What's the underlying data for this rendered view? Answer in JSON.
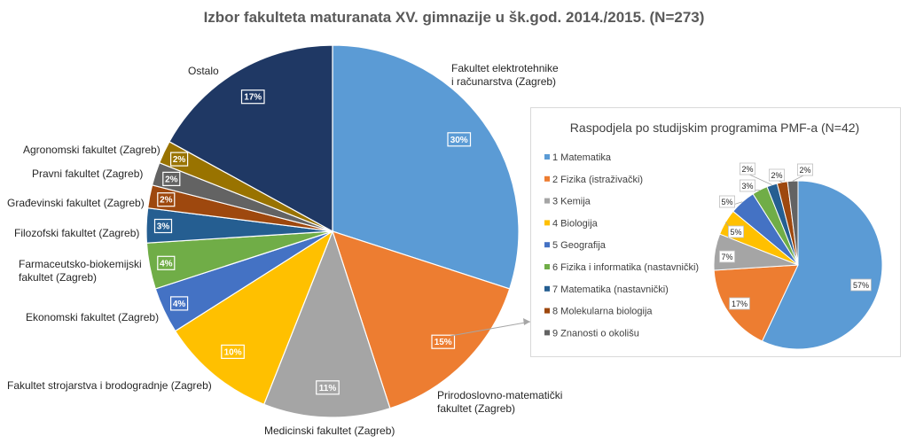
{
  "chart_data": [
    {
      "type": "pie",
      "title": "Izbor fakulteta maturanata XV. gimnazije u šk.god. 2014./2015. (N=273)",
      "slices": [
        {
          "label": "Fakultet elektrotehnike i računarstva (Zagreb)",
          "label_lines": [
            "Fakultet elektrotehnike",
            "i računarstva (Zagreb)"
          ],
          "value": 30,
          "value_label": "30%",
          "color": "#5B9BD5"
        },
        {
          "label": "Prirodoslovno-matematički fakultet (Zagreb)",
          "label_lines": [
            "Prirodoslovno-matematički",
            "fakultet (Zagreb)"
          ],
          "value": 15,
          "value_label": "15%",
          "color": "#ED7D31"
        },
        {
          "label": "Medicinski fakultet (Zagreb)",
          "label_lines": [
            "Medicinski fakultet (Zagreb)"
          ],
          "value": 11,
          "value_label": "11%",
          "color": "#A5A5A5"
        },
        {
          "label": "Fakultet strojarstva i brodogradnje (Zagreb)",
          "label_lines": [
            "Fakultet strojarstva i brodogradnje (Zagreb)"
          ],
          "value": 10,
          "value_label": "10%",
          "color": "#FFC000"
        },
        {
          "label": "Ekonomski fakultet (Zagreb)",
          "label_lines": [
            "Ekonomski fakultet (Zagreb)"
          ],
          "value": 4,
          "value_label": "4%",
          "color": "#4472C4"
        },
        {
          "label": "Farmaceutsko-biokemijski fakultet (Zagreb)",
          "label_lines": [
            "Farmaceutsko-biokemijski",
            "fakultet (Zagreb)"
          ],
          "value": 4,
          "value_label": "4%",
          "color": "#70AD47"
        },
        {
          "label": "Filozofski fakultet (Zagreb)",
          "label_lines": [
            "Filozofski fakultet (Zagreb)"
          ],
          "value": 3,
          "value_label": "3%",
          "color": "#255E91"
        },
        {
          "label": "Građevinski fakultet (Zagreb)",
          "label_lines": [
            "Građevinski fakultet (Zagreb)"
          ],
          "value": 2,
          "value_label": "2%",
          "color": "#9E480E"
        },
        {
          "label": "Pravni fakultet (Zagreb)",
          "label_lines": [
            "Pravni fakultet (Zagreb)"
          ],
          "value": 2,
          "value_label": "2%",
          "color": "#636363"
        },
        {
          "label": "Agronomski fakultet (Zagreb)",
          "label_lines": [
            "Agronomski fakultet (Zagreb)"
          ],
          "value": 2,
          "value_label": "2%",
          "color": "#997300"
        },
        {
          "label": "Ostalo",
          "label_lines": [
            "Ostalo"
          ],
          "value": 17,
          "value_label": "17%",
          "color": "#1F3864"
        }
      ]
    },
    {
      "type": "pie",
      "title": "Raspodjela po studijskim programima PMF-a (N=42)",
      "legend": "left",
      "slices": [
        {
          "num": "1",
          "label": "Matematika",
          "value": 57,
          "value_label": "57%",
          "color": "#5B9BD5"
        },
        {
          "num": "2",
          "label": "Fizika (istraživački)",
          "value": 17,
          "value_label": "17%",
          "color": "#ED7D31"
        },
        {
          "num": "3",
          "label": "Kemija",
          "value": 7,
          "value_label": "7%",
          "color": "#A5A5A5"
        },
        {
          "num": "4",
          "label": "Biologija",
          "value": 5,
          "value_label": "5%",
          "color": "#FFC000"
        },
        {
          "num": "5",
          "label": "Geografija",
          "value": 5,
          "value_label": "5%",
          "color": "#4472C4"
        },
        {
          "num": "6",
          "label": "Fizika i informatika (nastavnički)",
          "value": 3,
          "value_label": "3%",
          "color": "#70AD47"
        },
        {
          "num": "7",
          "label": "Matematika (nastavnički)",
          "value": 2,
          "value_label": "2%",
          "color": "#255E91"
        },
        {
          "num": "8",
          "label": "Molekularna biologija",
          "value": 2,
          "value_label": "2%",
          "color": "#9E480E"
        },
        {
          "num": "9",
          "label": "Znanosti o okolišu",
          "value": 2,
          "value_label": "2%",
          "color": "#636363"
        }
      ]
    }
  ]
}
